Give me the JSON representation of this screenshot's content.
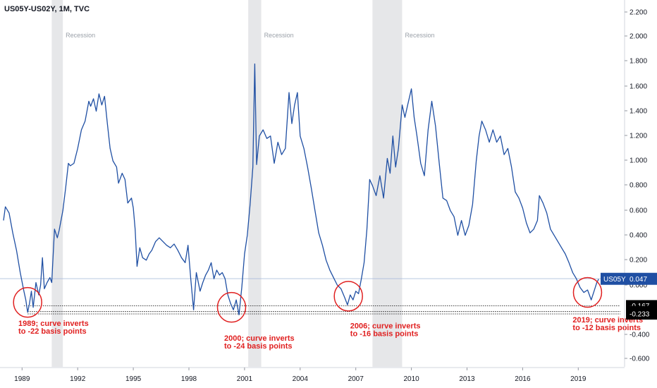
{
  "chart_data": {
    "type": "line",
    "title": "US05Y-US02Y, 1M, TVC",
    "colors": {
      "line": "#1f4fa3",
      "recession": "#e6e7e9",
      "annotation": "#e02020",
      "badge": "#1f4fa3",
      "black_badge": "#000000"
    },
    "x_ticks": [
      "1989",
      "1992",
      "1995",
      "1998",
      "2001",
      "2004",
      "2007",
      "2010",
      "2013",
      "2016",
      "2019"
    ],
    "y_ticks": [
      "2.200",
      "2.000",
      "1.800",
      "1.600",
      "1.400",
      "1.200",
      "1.000",
      "0.800",
      "0.600",
      "0.400",
      "0.200",
      "0.000",
      "-0.400",
      "-0.600"
    ],
    "ylim": [
      -0.7,
      2.3
    ],
    "xlim": [
      1988.0,
      2022.5
    ],
    "recessions": [
      {
        "start": 1990.6,
        "end": 1991.2,
        "label": "Recession"
      },
      {
        "start": 2001.2,
        "end": 2001.9,
        "label": "Recession"
      },
      {
        "start": 2007.9,
        "end": 2009.5,
        "label": "Recession"
      }
    ],
    "current_value": {
      "label": "US05Y",
      "value": "0.047",
      "y": 0.047
    },
    "reference_levels": [
      {
        "value": "-0.167",
        "y": -0.167
      },
      {
        "value": "-0.214",
        "y": -0.214
      },
      {
        "value": "-0.233",
        "y": -0.233
      }
    ],
    "annotations": [
      {
        "lines": [
          "1989; curve inverts",
          "to -22 basis points"
        ],
        "x": 1988.8,
        "y": -0.33
      },
      {
        "lines": [
          "2000; curve inverts",
          "to -24 basis points"
        ],
        "x": 1999.9,
        "y": -0.45
      },
      {
        "lines": [
          "2006; curve inverts",
          "to -16 basis points"
        ],
        "x": 2006.7,
        "y": -0.35
      },
      {
        "lines": [
          "2019; curve inverts",
          "to -12 basis points"
        ],
        "x": 2018.7,
        "y": -0.3
      }
    ],
    "circles": [
      {
        "x": 1989.3,
        "y": -0.14
      },
      {
        "x": 2000.3,
        "y": -0.18
      },
      {
        "x": 2006.6,
        "y": -0.09
      },
      {
        "x": 2019.5,
        "y": -0.06
      }
    ],
    "series": [
      {
        "values": [
          [
            1988.0,
            0.52
          ],
          [
            1988.1,
            0.63
          ],
          [
            1988.3,
            0.58
          ],
          [
            1988.5,
            0.42
          ],
          [
            1988.7,
            0.28
          ],
          [
            1988.9,
            0.1
          ],
          [
            1989.1,
            -0.05
          ],
          [
            1989.2,
            -0.12
          ],
          [
            1989.3,
            -0.22
          ],
          [
            1989.4,
            -0.15
          ],
          [
            1989.5,
            -0.05
          ],
          [
            1989.6,
            -0.18
          ],
          [
            1989.75,
            0.02
          ],
          [
            1989.9,
            -0.08
          ],
          [
            1990.0,
            0.0
          ],
          [
            1990.1,
            0.22
          ],
          [
            1990.2,
            -0.03
          ],
          [
            1990.35,
            0.02
          ],
          [
            1990.5,
            0.06
          ],
          [
            1990.6,
            0.02
          ],
          [
            1990.75,
            0.45
          ],
          [
            1990.9,
            0.38
          ],
          [
            1991.0,
            0.44
          ],
          [
            1991.2,
            0.6
          ],
          [
            1991.35,
            0.78
          ],
          [
            1991.5,
            0.98
          ],
          [
            1991.6,
            0.96
          ],
          [
            1991.8,
            0.98
          ],
          [
            1992.0,
            1.1
          ],
          [
            1992.2,
            1.25
          ],
          [
            1992.4,
            1.32
          ],
          [
            1992.6,
            1.48
          ],
          [
            1992.7,
            1.44
          ],
          [
            1992.85,
            1.5
          ],
          [
            1993.0,
            1.4
          ],
          [
            1993.15,
            1.54
          ],
          [
            1993.3,
            1.45
          ],
          [
            1993.45,
            1.52
          ],
          [
            1993.6,
            1.3
          ],
          [
            1993.75,
            1.1
          ],
          [
            1993.9,
            1.0
          ],
          [
            1994.1,
            0.95
          ],
          [
            1994.2,
            0.82
          ],
          [
            1994.4,
            0.9
          ],
          [
            1994.55,
            0.85
          ],
          [
            1994.7,
            0.66
          ],
          [
            1994.9,
            0.7
          ],
          [
            1995.0,
            0.62
          ],
          [
            1995.1,
            0.45
          ],
          [
            1995.2,
            0.15
          ],
          [
            1995.35,
            0.3
          ],
          [
            1995.5,
            0.22
          ],
          [
            1995.7,
            0.2
          ],
          [
            1995.85,
            0.25
          ],
          [
            1996.0,
            0.28
          ],
          [
            1996.2,
            0.35
          ],
          [
            1996.4,
            0.38
          ],
          [
            1996.6,
            0.35
          ],
          [
            1996.8,
            0.32
          ],
          [
            1997.0,
            0.3
          ],
          [
            1997.2,
            0.33
          ],
          [
            1997.4,
            0.28
          ],
          [
            1997.6,
            0.22
          ],
          [
            1997.8,
            0.18
          ],
          [
            1997.95,
            0.32
          ],
          [
            1998.1,
            0.05
          ],
          [
            1998.25,
            -0.2
          ],
          [
            1998.4,
            0.1
          ],
          [
            1998.6,
            -0.05
          ],
          [
            1998.75,
            0.02
          ],
          [
            1998.9,
            0.08
          ],
          [
            1999.05,
            0.12
          ],
          [
            1999.2,
            0.18
          ],
          [
            1999.35,
            0.05
          ],
          [
            1999.5,
            0.12
          ],
          [
            1999.65,
            0.08
          ],
          [
            1999.8,
            0.1
          ],
          [
            1999.95,
            0.05
          ],
          [
            2000.1,
            -0.08
          ],
          [
            2000.25,
            -0.15
          ],
          [
            2000.4,
            -0.2
          ],
          [
            2000.55,
            -0.12
          ],
          [
            2000.7,
            -0.24
          ],
          [
            2000.85,
            -0.02
          ],
          [
            2001.0,
            0.25
          ],
          [
            2001.15,
            0.4
          ],
          [
            2001.3,
            0.65
          ],
          [
            2001.45,
            0.95
          ],
          [
            2001.55,
            1.78
          ],
          [
            2001.65,
            0.97
          ],
          [
            2001.8,
            1.2
          ],
          [
            2002.0,
            1.25
          ],
          [
            2002.2,
            1.18
          ],
          [
            2002.4,
            1.2
          ],
          [
            2002.6,
            0.98
          ],
          [
            2002.8,
            1.15
          ],
          [
            2003.0,
            1.05
          ],
          [
            2003.2,
            1.1
          ],
          [
            2003.4,
            1.55
          ],
          [
            2003.55,
            1.3
          ],
          [
            2003.7,
            1.45
          ],
          [
            2003.85,
            1.55
          ],
          [
            2004.0,
            1.2
          ],
          [
            2004.2,
            1.1
          ],
          [
            2004.4,
            0.95
          ],
          [
            2004.6,
            0.78
          ],
          [
            2004.8,
            0.6
          ],
          [
            2005.0,
            0.42
          ],
          [
            2005.2,
            0.32
          ],
          [
            2005.4,
            0.2
          ],
          [
            2005.6,
            0.12
          ],
          [
            2005.8,
            0.06
          ],
          [
            2006.0,
            0.0
          ],
          [
            2006.2,
            -0.03
          ],
          [
            2006.4,
            -0.1
          ],
          [
            2006.55,
            -0.16
          ],
          [
            2006.7,
            -0.08
          ],
          [
            2006.85,
            -0.12
          ],
          [
            2007.0,
            -0.05
          ],
          [
            2007.15,
            -0.07
          ],
          [
            2007.3,
            0.05
          ],
          [
            2007.45,
            0.18
          ],
          [
            2007.6,
            0.45
          ],
          [
            2007.75,
            0.85
          ],
          [
            2007.9,
            0.8
          ],
          [
            2008.1,
            0.72
          ],
          [
            2008.3,
            0.88
          ],
          [
            2008.5,
            0.7
          ],
          [
            2008.7,
            1.02
          ],
          [
            2008.85,
            0.9
          ],
          [
            2009.0,
            1.2
          ],
          [
            2009.15,
            0.95
          ],
          [
            2009.3,
            1.1
          ],
          [
            2009.5,
            1.45
          ],
          [
            2009.65,
            1.35
          ],
          [
            2009.8,
            1.45
          ],
          [
            2010.0,
            1.58
          ],
          [
            2010.15,
            1.35
          ],
          [
            2010.3,
            1.2
          ],
          [
            2010.5,
            0.98
          ],
          [
            2010.7,
            0.88
          ],
          [
            2010.9,
            1.25
          ],
          [
            2011.1,
            1.48
          ],
          [
            2011.3,
            1.28
          ],
          [
            2011.5,
            0.98
          ],
          [
            2011.7,
            0.7
          ],
          [
            2011.9,
            0.68
          ],
          [
            2012.1,
            0.6
          ],
          [
            2012.3,
            0.55
          ],
          [
            2012.5,
            0.4
          ],
          [
            2012.7,
            0.52
          ],
          [
            2012.9,
            0.4
          ],
          [
            2013.1,
            0.48
          ],
          [
            2013.3,
            0.65
          ],
          [
            2013.5,
            1.0
          ],
          [
            2013.65,
            1.2
          ],
          [
            2013.8,
            1.32
          ],
          [
            2014.0,
            1.25
          ],
          [
            2014.2,
            1.15
          ],
          [
            2014.4,
            1.25
          ],
          [
            2014.6,
            1.15
          ],
          [
            2014.8,
            1.2
          ],
          [
            2015.0,
            1.05
          ],
          [
            2015.2,
            1.1
          ],
          [
            2015.4,
            0.95
          ],
          [
            2015.6,
            0.75
          ],
          [
            2015.8,
            0.7
          ],
          [
            2016.0,
            0.62
          ],
          [
            2016.2,
            0.5
          ],
          [
            2016.4,
            0.42
          ],
          [
            2016.6,
            0.45
          ],
          [
            2016.8,
            0.52
          ],
          [
            2016.9,
            0.72
          ],
          [
            2017.1,
            0.66
          ],
          [
            2017.3,
            0.58
          ],
          [
            2017.5,
            0.45
          ],
          [
            2017.7,
            0.4
          ],
          [
            2017.9,
            0.35
          ],
          [
            2018.1,
            0.3
          ],
          [
            2018.3,
            0.25
          ],
          [
            2018.5,
            0.18
          ],
          [
            2018.7,
            0.1
          ],
          [
            2018.9,
            0.05
          ],
          [
            2019.1,
            -0.02
          ],
          [
            2019.3,
            -0.06
          ],
          [
            2019.5,
            -0.04
          ],
          [
            2019.7,
            -0.12
          ],
          [
            2019.85,
            -0.05
          ],
          [
            2020.0,
            0.02
          ],
          [
            2020.1,
            0.047
          ]
        ]
      }
    ]
  }
}
